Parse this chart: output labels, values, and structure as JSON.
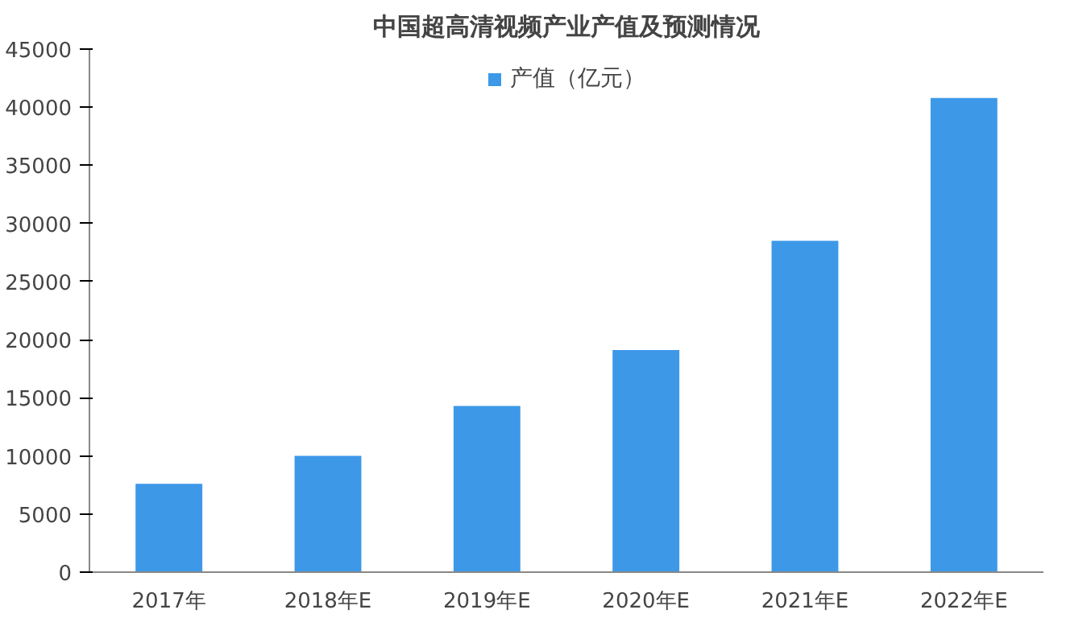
{
  "chart_data": {
    "type": "bar",
    "title": "中国超高清视频产业产值及预测情况",
    "categories": [
      "2017年",
      "2018年E",
      "2019年E",
      "2020年E",
      "2021年E",
      "2022年E"
    ],
    "series": [
      {
        "name": "产值（亿元）",
        "color": "#3d98e8",
        "values": [
          7600,
          10000,
          14300,
          19100,
          28500,
          40800
        ]
      }
    ],
    "ylim": [
      0,
      45000
    ],
    "yticks": [
      0,
      5000,
      10000,
      15000,
      20000,
      25000,
      30000,
      35000,
      40000,
      45000
    ],
    "grid": false,
    "legend": "top"
  }
}
